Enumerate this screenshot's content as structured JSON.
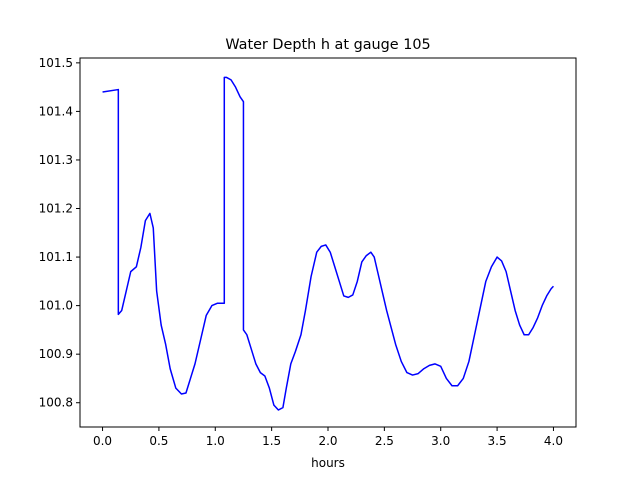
{
  "chart_data": {
    "type": "line",
    "title": "Water Depth h at gauge 105",
    "xlabel": "hours",
    "ylabel": "",
    "xlim": [
      -0.2,
      4.2
    ],
    "ylim": [
      100.75,
      101.51
    ],
    "x_ticks": [
      0.0,
      0.5,
      1.0,
      1.5,
      2.0,
      2.5,
      3.0,
      3.5,
      4.0
    ],
    "x_tick_labels": [
      "0.0",
      "0.5",
      "1.0",
      "1.5",
      "2.0",
      "2.5",
      "3.0",
      "3.5",
      "4.0"
    ],
    "y_ticks": [
      100.8,
      100.9,
      101.0,
      101.1,
      101.2,
      101.3,
      101.4,
      101.5
    ],
    "y_tick_labels": [
      "100.8",
      "100.9",
      "101.0",
      "101.1",
      "101.2",
      "101.3",
      "101.4",
      "101.5"
    ],
    "grid": false,
    "series": [
      {
        "color": "#0000ff",
        "x": [
          0.0,
          0.14,
          0.14,
          0.17,
          0.2,
          0.25,
          0.3,
          0.34,
          0.38,
          0.42,
          0.45,
          0.48,
          0.52,
          0.56,
          0.6,
          0.65,
          0.7,
          0.74,
          0.78,
          0.82,
          0.87,
          0.92,
          0.97,
          1.02,
          1.06,
          1.08,
          1.08,
          1.1,
          1.14,
          1.18,
          1.22,
          1.25,
          1.25,
          1.28,
          1.32,
          1.36,
          1.4,
          1.44,
          1.48,
          1.52,
          1.56,
          1.6,
          1.63,
          1.67,
          1.71,
          1.76,
          1.8,
          1.85,
          1.9,
          1.94,
          1.98,
          2.02,
          2.06,
          2.1,
          2.14,
          2.18,
          2.22,
          2.26,
          2.3,
          2.34,
          2.38,
          2.41,
          2.44,
          2.48,
          2.52,
          2.56,
          2.6,
          2.65,
          2.7,
          2.75,
          2.8,
          2.85,
          2.9,
          2.95,
          3.0,
          3.05,
          3.1,
          3.15,
          3.2,
          3.25,
          3.3,
          3.35,
          3.4,
          3.45,
          3.5,
          3.54,
          3.58,
          3.62,
          3.66,
          3.7,
          3.74,
          3.78,
          3.82,
          3.86,
          3.9,
          3.94,
          3.98,
          4.0
        ],
        "values": [
          101.44,
          101.445,
          100.982,
          100.99,
          101.02,
          101.07,
          101.08,
          101.12,
          101.175,
          101.19,
          101.16,
          101.03,
          100.96,
          100.92,
          100.87,
          100.83,
          100.818,
          100.82,
          100.85,
          100.88,
          100.93,
          100.98,
          101.0,
          101.005,
          101.005,
          101.005,
          101.47,
          101.47,
          101.465,
          101.45,
          101.43,
          101.42,
          100.95,
          100.94,
          100.91,
          100.88,
          100.862,
          100.855,
          100.83,
          100.795,
          100.785,
          100.79,
          100.83,
          100.88,
          100.905,
          100.94,
          100.99,
          101.06,
          101.11,
          101.122,
          101.125,
          101.11,
          101.08,
          101.05,
          101.02,
          101.017,
          101.022,
          101.05,
          101.09,
          101.103,
          101.11,
          101.1,
          101.07,
          101.03,
          100.99,
          100.955,
          100.92,
          100.885,
          100.862,
          100.857,
          100.86,
          100.87,
          100.877,
          100.88,
          100.875,
          100.85,
          100.835,
          100.835,
          100.85,
          100.885,
          100.94,
          100.995,
          101.05,
          101.08,
          101.1,
          101.092,
          101.07,
          101.03,
          100.99,
          100.96,
          100.94,
          100.94,
          100.955,
          100.975,
          101.0,
          101.02,
          101.035,
          101.04
        ]
      }
    ]
  }
}
